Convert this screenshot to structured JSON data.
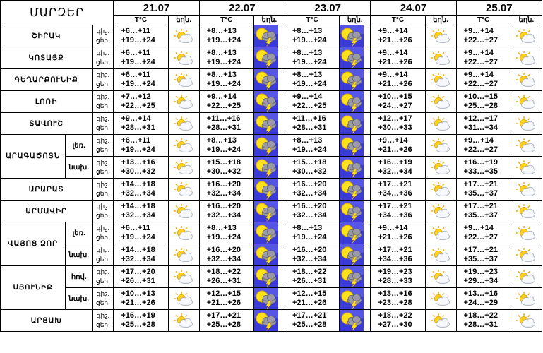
{
  "header": {
    "region_label": "ՄԱՐԶԵՐ",
    "temp_label": "T°C",
    "weather_label": "եղն.",
    "dates": [
      "21.07",
      "22.07",
      "23.07",
      "24.07",
      "25.07"
    ]
  },
  "row_labels": {
    "night": "գիշ.",
    "day": "ցեր."
  },
  "regions": [
    {
      "name": "ՇԻՐԱԿ",
      "rows": [
        {
          "sub": "",
          "days": [
            {
              "night": "+6…+11",
              "day": "+19…+24",
              "icon": "partly-cloudy-icon"
            },
            {
              "night": "+8…+13",
              "day": "+19…+24",
              "icon": "thunderstorm-icon"
            },
            {
              "night": "+8…+13",
              "day": "+19…+24",
              "icon": "thunderstorm-icon"
            },
            {
              "night": "+9…+14",
              "day": "+21…+26",
              "icon": "partly-cloudy-icon"
            },
            {
              "night": "+9…+14",
              "day": "+22…+27",
              "icon": "partly-cloudy-icon"
            }
          ]
        }
      ]
    },
    {
      "name": "ԿՈՏԱՅՔ",
      "rows": [
        {
          "sub": "",
          "days": [
            {
              "night": "+6…+11",
              "day": "+19…+24",
              "icon": "partly-cloudy-icon"
            },
            {
              "night": "+8…+13",
              "day": "+19…+24",
              "icon": "thunderstorm-icon"
            },
            {
              "night": "+8…+13",
              "day": "+19…+24",
              "icon": "thunderstorm-icon"
            },
            {
              "night": "+9…+14",
              "day": "+21…+26",
              "icon": "partly-cloudy-icon"
            },
            {
              "night": "+9…+14",
              "day": "+22…+27",
              "icon": "partly-cloudy-icon"
            }
          ]
        }
      ]
    },
    {
      "name": "ԳԵՂԱՐՔՈՒՆԻՔ",
      "rows": [
        {
          "sub": "",
          "days": [
            {
              "night": "+6…+11",
              "day": "+19…+24",
              "icon": "partly-cloudy-icon"
            },
            {
              "night": "+8…+13",
              "day": "+19…+24",
              "icon": "thunderstorm-icon"
            },
            {
              "night": "+8…+13",
              "day": "+19…+24",
              "icon": "thunderstorm-icon"
            },
            {
              "night": "+9…+14",
              "day": "+21…+26",
              "icon": "partly-cloudy-icon"
            },
            {
              "night": "+9…+14",
              "day": "+22…+27",
              "icon": "partly-cloudy-icon"
            }
          ]
        }
      ]
    },
    {
      "name": "ԼՈՌԻ",
      "rows": [
        {
          "sub": "",
          "days": [
            {
              "night": "+7…+12",
              "day": "+22…+25",
              "icon": "partly-cloudy-icon"
            },
            {
              "night": "+9…+14",
              "day": "+22…+25",
              "icon": "thunderstorm-icon"
            },
            {
              "night": "+9…+14",
              "day": "+22…+25",
              "icon": "thunderstorm-icon"
            },
            {
              "night": "+10…+15",
              "day": "+24…+27",
              "icon": "partly-cloudy-icon"
            },
            {
              "night": "+10…+15",
              "day": "+25…+28",
              "icon": "partly-cloudy-icon"
            }
          ]
        }
      ]
    },
    {
      "name": "ՏԱՎՈՒՇ",
      "rows": [
        {
          "sub": "",
          "days": [
            {
              "night": "+9…+14",
              "day": "+28…+31",
              "icon": "partly-cloudy-icon"
            },
            {
              "night": "+11…+16",
              "day": "+28…+31",
              "icon": "thunderstorm-icon"
            },
            {
              "night": "+11…+16",
              "day": "+28…+31",
              "icon": "thunderstorm-icon"
            },
            {
              "night": "+12…+17",
              "day": "+30…+33",
              "icon": "partly-cloudy-icon"
            },
            {
              "night": "+12…+17",
              "day": "+31…+34",
              "icon": "partly-cloudy-icon"
            }
          ]
        }
      ]
    },
    {
      "name": "ԱՐԱԳԱԾՈՏՆ",
      "rows": [
        {
          "sub": "լեռ.",
          "days": [
            {
              "night": "+6…+11",
              "day": "+19…+24",
              "icon": "partly-cloudy-icon"
            },
            {
              "night": "+8…+13",
              "day": "+19…+24",
              "icon": "thunderstorm-icon"
            },
            {
              "night": "+8…+13",
              "day": "+19…+24",
              "icon": "thunderstorm-icon"
            },
            {
              "night": "+9…+14",
              "day": "+21…+26",
              "icon": "partly-cloudy-icon"
            },
            {
              "night": "+9…+14",
              "day": "+22…+27",
              "icon": "partly-cloudy-icon"
            }
          ]
        },
        {
          "sub": "նախ.",
          "days": [
            {
              "night": "+13…+16",
              "day": "+30…+32",
              "icon": "partly-cloudy-icon"
            },
            {
              "night": "+15…+18",
              "day": "+30…+32",
              "icon": "thunderstorm-icon"
            },
            {
              "night": "+15…+18",
              "day": "+30…+32",
              "icon": "thunderstorm-icon"
            },
            {
              "night": "+16…+19",
              "day": "+32…+34",
              "icon": "partly-cloudy-icon"
            },
            {
              "night": "+16…+19",
              "day": "+33…+35",
              "icon": "partly-cloudy-icon"
            }
          ]
        }
      ]
    },
    {
      "name": "ԱՐԱՐԱՏ",
      "rows": [
        {
          "sub": "",
          "days": [
            {
              "night": "+14…+18",
              "day": "+32…+34",
              "icon": "partly-cloudy-icon"
            },
            {
              "night": "+16…+20",
              "day": "+32…+34",
              "icon": "thunderstorm-icon"
            },
            {
              "night": "+16…+20",
              "day": "+32…+34",
              "icon": "thunderstorm-icon"
            },
            {
              "night": "+17…+21",
              "day": "+34…+36",
              "icon": "partly-cloudy-icon"
            },
            {
              "night": "+17…+21",
              "day": "+35…+37",
              "icon": "partly-cloudy-icon"
            }
          ]
        }
      ]
    },
    {
      "name": "ԱՐՄԱՎԻՐ",
      "rows": [
        {
          "sub": "",
          "days": [
            {
              "night": "+14…+18",
              "day": "+32…+34",
              "icon": "partly-cloudy-icon"
            },
            {
              "night": "+16…+20",
              "day": "+32…+34",
              "icon": "thunderstorm-icon"
            },
            {
              "night": "+16…+20",
              "day": "+32…+34",
              "icon": "thunderstorm-icon"
            },
            {
              "night": "+17…+21",
              "day": "+34…+36",
              "icon": "partly-cloudy-icon"
            },
            {
              "night": "+17…+21",
              "day": "+35…+37",
              "icon": "partly-cloudy-icon"
            }
          ]
        }
      ]
    },
    {
      "name": "ՎԱՅՈՑ ՁՈՐ",
      "rows": [
        {
          "sub": "լեռ.",
          "days": [
            {
              "night": "+6…+11",
              "day": "+19…+24",
              "icon": "partly-cloudy-icon"
            },
            {
              "night": "+8…+13",
              "day": "+19…+24",
              "icon": "thunderstorm-icon"
            },
            {
              "night": "+8…+13",
              "day": "+19…+24",
              "icon": "thunderstorm-icon"
            },
            {
              "night": "+9…+14",
              "day": "+21…+26",
              "icon": "partly-cloudy-icon"
            },
            {
              "night": "+9…+14",
              "day": "+22…+27",
              "icon": "partly-cloudy-icon"
            }
          ]
        },
        {
          "sub": "նախ.",
          "days": [
            {
              "night": "+14…+18",
              "day": "+32…+34",
              "icon": "partly-cloudy-icon"
            },
            {
              "night": "+16…+20",
              "day": "+32…+34",
              "icon": "thunderstorm-icon"
            },
            {
              "night": "+16…+20",
              "day": "+32…+34",
              "icon": "thunderstorm-icon"
            },
            {
              "night": "+17…+21",
              "day": "+34…+36",
              "icon": "partly-cloudy-icon"
            },
            {
              "night": "+17…+21",
              "day": "+35…+37",
              "icon": "partly-cloudy-icon"
            }
          ]
        }
      ]
    },
    {
      "name": "ՍՅՈՒՆԻՔ",
      "rows": [
        {
          "sub": "հով.",
          "days": [
            {
              "night": "+17…+20",
              "day": "+26…+31",
              "icon": "partly-cloudy-icon"
            },
            {
              "night": "+18…+22",
              "day": "+26…+31",
              "icon": "thunderstorm-icon"
            },
            {
              "night": "+18…+22",
              "day": "+26…+31",
              "icon": "thunderstorm-icon"
            },
            {
              "night": "+19…+23",
              "day": "+28…+33",
              "icon": "partly-cloudy-icon"
            },
            {
              "night": "+19…+23",
              "day": "+29…+34",
              "icon": "partly-cloudy-icon"
            }
          ]
        },
        {
          "sub": "նախ.",
          "days": [
            {
              "night": "+10…+13",
              "day": "+21…+26",
              "icon": "partly-cloudy-icon"
            },
            {
              "night": "+12…+15",
              "day": "+21…+26",
              "icon": "thunderstorm-icon"
            },
            {
              "night": "+12…+15",
              "day": "+21…+26",
              "icon": "thunderstorm-icon"
            },
            {
              "night": "+13…+16",
              "day": "+23…+28",
              "icon": "partly-cloudy-icon"
            },
            {
              "night": "+13…+16",
              "day": "+24…+29",
              "icon": "partly-cloudy-icon"
            }
          ]
        }
      ]
    },
    {
      "name": "ԱՐՑԱԽ",
      "rows": [
        {
          "sub": "",
          "days": [
            {
              "night": "+16…+19",
              "day": "+25…+28",
              "icon": "partly-cloudy-icon"
            },
            {
              "night": "+17…+21",
              "day": "+25…+28",
              "icon": "thunderstorm-icon"
            },
            {
              "night": "+17…+21",
              "day": "+25…+28",
              "icon": "thunderstorm-icon"
            },
            {
              "night": "+18…+22",
              "day": "+27…+30",
              "icon": "partly-cloudy-icon"
            },
            {
              "night": "+18…+22",
              "day": "+28…+31",
              "icon": "partly-cloudy-icon"
            }
          ]
        }
      ]
    }
  ]
}
